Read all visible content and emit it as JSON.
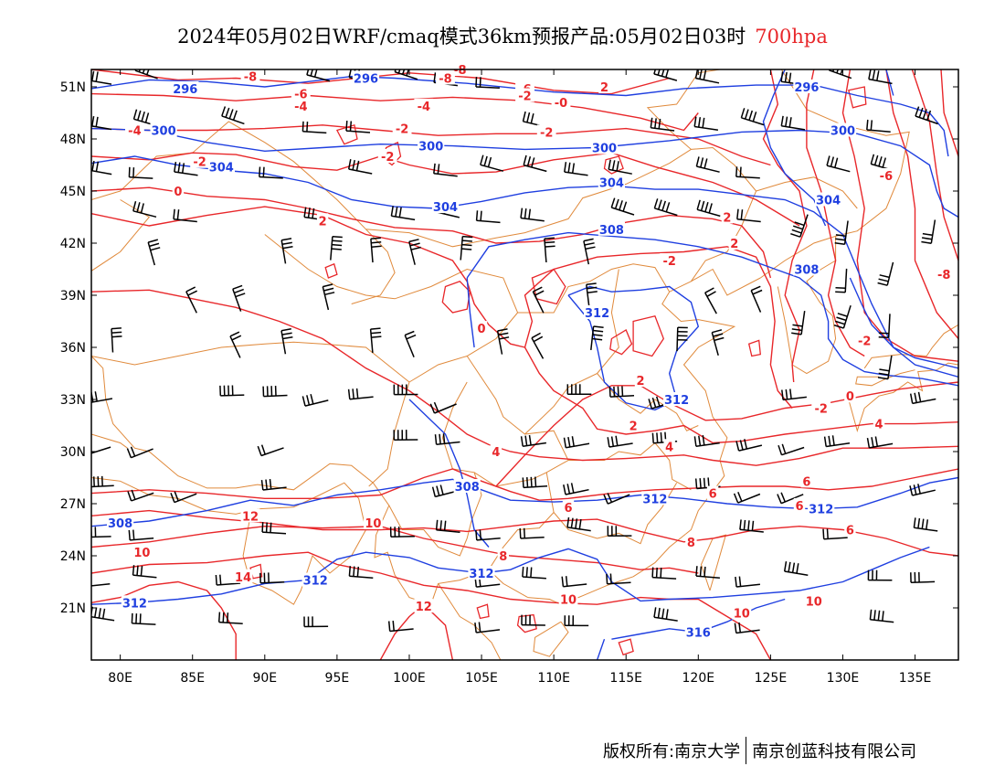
{
  "header": {
    "title": "2024年05月02日WRF/cmaq模式36km预报产品:05月02日03时",
    "level": "700hpa"
  },
  "axes": {
    "lat_ticks": [
      "51N",
      "48N",
      "45N",
      "42N",
      "39N",
      "36N",
      "33N",
      "30N",
      "27N",
      "24N",
      "21N"
    ],
    "lon_ticks": [
      "80E",
      "85E",
      "90E",
      "95E",
      "100E",
      "105E",
      "110E",
      "115E",
      "120E",
      "125E",
      "130E",
      "135E"
    ],
    "lon_range": [
      78,
      138
    ],
    "lat_range": [
      18,
      52
    ]
  },
  "contours": {
    "height_color": "#1f3fe0",
    "temperature_color": "#e8272a",
    "boundary_color": "#e08a3c",
    "height_labels": [
      {
        "text": "296",
        "lon": 84.5,
        "lat": 50.9
      },
      {
        "text": "296",
        "lon": 97.0,
        "lat": 51.5
      },
      {
        "text": "296",
        "lon": 127.5,
        "lat": 51.0
      },
      {
        "text": "300",
        "lon": 83.0,
        "lat": 48.5
      },
      {
        "text": "300",
        "lon": 101.5,
        "lat": 47.6
      },
      {
        "text": "300",
        "lon": 113.5,
        "lat": 47.5
      },
      {
        "text": "300",
        "lon": 130.0,
        "lat": 48.5
      },
      {
        "text": "304",
        "lon": 87.0,
        "lat": 46.4
      },
      {
        "text": "304",
        "lon": 102.5,
        "lat": 44.1
      },
      {
        "text": "304",
        "lon": 114.0,
        "lat": 45.5
      },
      {
        "text": "304",
        "lon": 129.0,
        "lat": 44.5
      },
      {
        "text": "308",
        "lon": 114.0,
        "lat": 42.8
      },
      {
        "text": "308",
        "lon": 127.5,
        "lat": 40.5
      },
      {
        "text": "308",
        "lon": 80.0,
        "lat": 25.9
      },
      {
        "text": "308",
        "lon": 104.0,
        "lat": 28.0
      },
      {
        "text": "312",
        "lon": 113.0,
        "lat": 38.0
      },
      {
        "text": "312",
        "lon": 118.5,
        "lat": 33.0
      },
      {
        "text": "312",
        "lon": 117.0,
        "lat": 27.3
      },
      {
        "text": "312",
        "lon": 128.5,
        "lat": 26.7
      },
      {
        "text": "312",
        "lon": 105.0,
        "lat": 23.0
      },
      {
        "text": "312",
        "lon": 81.0,
        "lat": 21.3
      },
      {
        "text": "312",
        "lon": 93.5,
        "lat": 22.6
      },
      {
        "text": "316",
        "lon": 120.0,
        "lat": 19.6
      }
    ],
    "temperature_labels": [
      {
        "text": "-8",
        "lon": 89.0,
        "lat": 51.6
      },
      {
        "text": "-8",
        "lon": 103.5,
        "lat": 52.0
      },
      {
        "text": "-8",
        "lon": 102.5,
        "lat": 51.5
      },
      {
        "text": "-6",
        "lon": 92.5,
        "lat": 50.6
      },
      {
        "text": "-6",
        "lon": 108.0,
        "lat": 50.9
      },
      {
        "text": "-4",
        "lon": 101.0,
        "lat": 49.9
      },
      {
        "text": "-4",
        "lon": 81.0,
        "lat": 48.5
      },
      {
        "text": "-4",
        "lon": 92.5,
        "lat": 49.9
      },
      {
        "text": "-2",
        "lon": 99.5,
        "lat": 48.6
      },
      {
        "text": "-2",
        "lon": 109.5,
        "lat": 48.4
      },
      {
        "text": "-2",
        "lon": 85.5,
        "lat": 46.7
      },
      {
        "text": "-2",
        "lon": 108.0,
        "lat": 50.5
      },
      {
        "text": "0",
        "lon": 84.0,
        "lat": 45.0
      },
      {
        "text": "-0",
        "lon": 110.5,
        "lat": 50.1
      },
      {
        "text": "2",
        "lon": 113.5,
        "lat": 51.0
      },
      {
        "text": "-2",
        "lon": 98.5,
        "lat": 47.0
      },
      {
        "text": "2",
        "lon": 94.0,
        "lat": 43.3
      },
      {
        "text": "2",
        "lon": 122.0,
        "lat": 43.5
      },
      {
        "text": "2",
        "lon": 122.5,
        "lat": 42.0
      },
      {
        "text": "-2",
        "lon": 118.0,
        "lat": 41.0
      },
      {
        "text": "0",
        "lon": 105.0,
        "lat": 37.1
      },
      {
        "text": "2",
        "lon": 116.0,
        "lat": 34.1
      },
      {
        "text": "2",
        "lon": 115.5,
        "lat": 31.5
      },
      {
        "text": "0",
        "lon": 130.5,
        "lat": 33.2
      },
      {
        "text": "-2",
        "lon": 128.5,
        "lat": 32.5
      },
      {
        "text": "-2",
        "lon": 131.5,
        "lat": 36.4
      },
      {
        "text": "-6",
        "lon": 133.0,
        "lat": 45.9
      },
      {
        "text": "-8",
        "lon": 137.0,
        "lat": 40.2
      },
      {
        "text": "4",
        "lon": 106.0,
        "lat": 30.0
      },
      {
        "text": "4",
        "lon": 118.0,
        "lat": 30.3
      },
      {
        "text": "4",
        "lon": 132.5,
        "lat": 31.6
      },
      {
        "text": "6",
        "lon": 111.0,
        "lat": 26.8
      },
      {
        "text": "6",
        "lon": 121.0,
        "lat": 27.6
      },
      {
        "text": "6",
        "lon": 127.5,
        "lat": 28.3
      },
      {
        "text": "6",
        "lon": 127.0,
        "lat": 26.9
      },
      {
        "text": "6",
        "lon": 130.5,
        "lat": 25.5
      },
      {
        "text": "8",
        "lon": 106.5,
        "lat": 24.0
      },
      {
        "text": "8",
        "lon": 119.5,
        "lat": 24.8
      },
      {
        "text": "10",
        "lon": 81.5,
        "lat": 24.2
      },
      {
        "text": "10",
        "lon": 97.5,
        "lat": 25.9
      },
      {
        "text": "10",
        "lon": 111.0,
        "lat": 21.5
      },
      {
        "text": "10",
        "lon": 123.0,
        "lat": 20.7
      },
      {
        "text": "10",
        "lon": 128.0,
        "lat": 21.4
      },
      {
        "text": "12",
        "lon": 89.0,
        "lat": 26.3
      },
      {
        "text": "12",
        "lon": 101.0,
        "lat": 21.1
      },
      {
        "text": "14",
        "lon": 88.5,
        "lat": 22.8
      }
    ]
  },
  "footer": {
    "left": "版权所有:南京大学",
    "right": "南京创蓝科技有限公司"
  }
}
